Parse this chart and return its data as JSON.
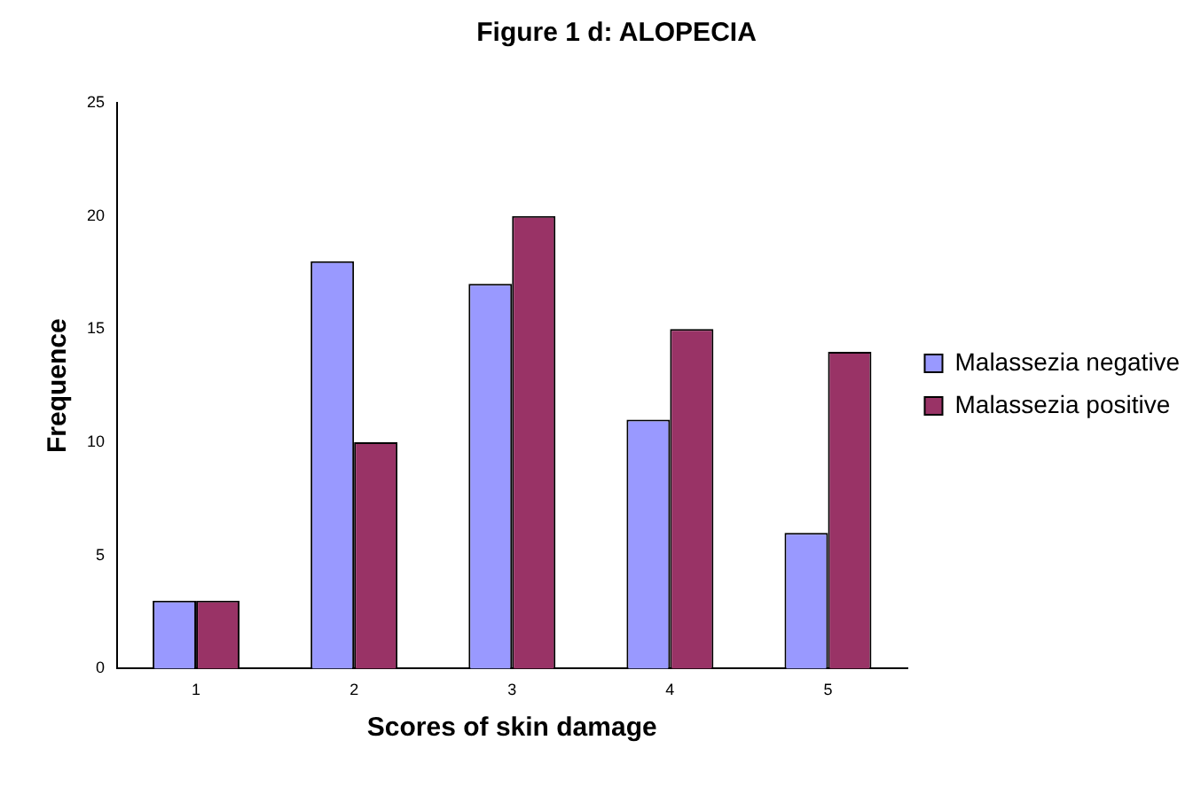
{
  "chart_data": {
    "type": "bar",
    "title": "Figure 1 d: ALOPECIA",
    "xlabel": "Scores of skin damage",
    "ylabel": "Frequence",
    "categories": [
      "1",
      "2",
      "3",
      "4",
      "5"
    ],
    "series": [
      {
        "name": "Malassezia negative",
        "color": "#9999ff",
        "values": [
          3,
          18,
          17,
          11,
          6
        ]
      },
      {
        "name": "Malassezia positive",
        "color": "#993366",
        "values": [
          3,
          10,
          20,
          15,
          14
        ]
      }
    ],
    "ylim": [
      0,
      25
    ],
    "yticks": [
      0,
      5,
      10,
      15,
      20,
      25
    ],
    "grid": false,
    "legend": "right"
  }
}
